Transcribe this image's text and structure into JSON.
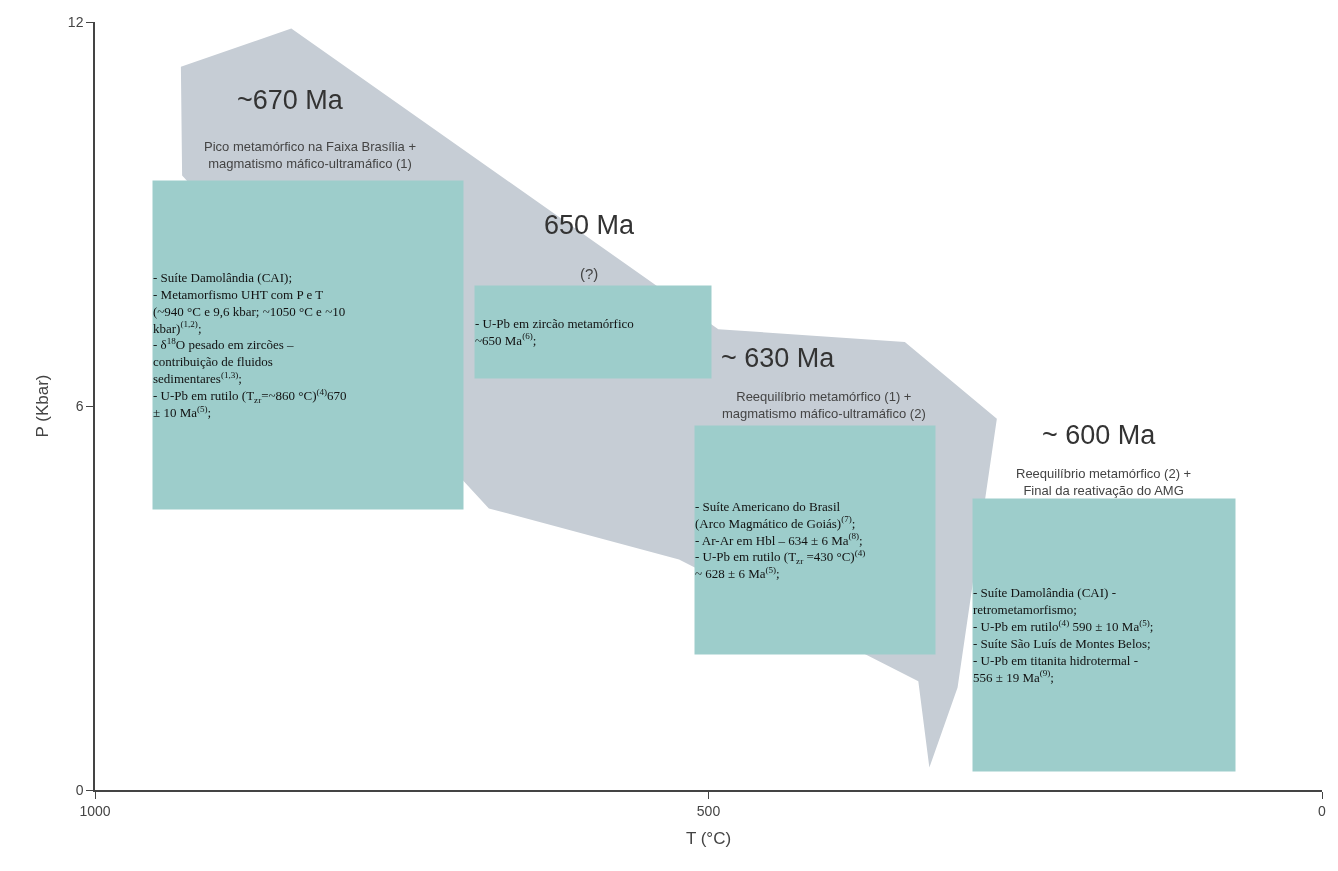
{
  "chart_data": {
    "type": "area",
    "xlabel": "T (°C)",
    "ylabel": "P (Kbar)",
    "xlim": [
      1000,
      0
    ],
    "xticks": [
      1000,
      500,
      0
    ],
    "ylim": [
      0,
      12
    ],
    "yticks": [
      0,
      6,
      12
    ],
    "series": [
      {
        "color": "#c6cdd5",
        "x": [
          930,
          840,
          492,
          340,
          265,
          297,
          320,
          329,
          524,
          679,
          929,
          930
        ],
        "values": [
          11.3,
          11.9,
          7.2,
          7.0,
          5.8,
          1.6,
          0.35,
          1.7,
          3.6,
          4.4,
          9.6,
          11.3
        ]
      }
    ],
    "annotations": [
      "~670 Ma",
      "Pico metamórfico na Faixa Brasília +\nmagmatismo máfico-ultramáfico (1)",
      "- Suíte Damolândia (CAI);\n- Metamorfismo UHT com P e T\n(~940 °C e 9,6 kbar; ~1050 °C e ~10\nkbar)$^{(1,2)}$;\n- δ$^{18}$O pesado em zircões –\ncontribuição de fluidos\nsedimentares$^{(1,3)}$;\n- U-Pb em rutilo (T$_{zr}$=~860 °C)$^{(4)}$670\n± 10 Ma$^{(5)}$;",
      "650 Ma",
      "(?)",
      "- U-Pb em zircão metamórfico\n~650 Ma$^{(6)}$;",
      "~ 630 Ma",
      "Reequilíbrio metamórfico (1) +\nmagmatismo máfico-ultramáfico (2)",
      "- Suíte Americano do Brasil\n(Arco Magmático de Goiás)$^{(7)}$;\n- Ar-Ar em Hbl – 634 ± 6 Ma$^{(8)}$;\n- U-Pb em rutilo (T$_{zr}$ =430 °C)$^{(4)}$\n~ 628 ± 6 Ma$^{(5)}$;",
      "~ 600 Ma",
      "Reequilíbrio metamórfico (2) +\nFinal da reativação do AMG",
      "- Suíte Damolândia (CAI) -\nretrometamorfismo;\n- U-Pb em rutilo$^{(4)}$ 590 ± 10 Ma$^{(5)}$;\n- Suíte São Luís de Montes Belos;\n- U-Pb em titanita hidrotermal -\n556 ± 19 Ma$^{(9)}$;"
    ]
  }
}
